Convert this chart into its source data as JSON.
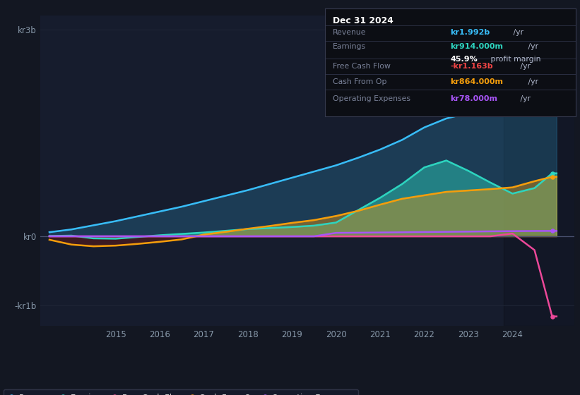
{
  "bg_color": "#131722",
  "panel_bg": "#161c2d",
  "grid_color": "#1e2535",
  "ylim": [
    -1300,
    3200
  ],
  "xlim": [
    2013.3,
    2025.4
  ],
  "xticks": [
    2015,
    2016,
    2017,
    2018,
    2019,
    2020,
    2021,
    2022,
    2023,
    2024
  ],
  "ytick_positions": [
    -1000,
    0,
    3000
  ],
  "ytick_labels": [
    "-kr1b",
    "kr0",
    "kr3b"
  ],
  "years": [
    2013.5,
    2014.0,
    2014.5,
    2015.0,
    2015.5,
    2016.0,
    2016.5,
    2017.0,
    2017.5,
    2018.0,
    2018.5,
    2019.0,
    2019.5,
    2020.0,
    2020.5,
    2021.0,
    2021.5,
    2022.0,
    2022.5,
    2023.0,
    2023.5,
    2024.0,
    2024.5,
    2024.9,
    2025.0
  ],
  "revenue": [
    60,
    100,
    160,
    220,
    290,
    360,
    430,
    510,
    590,
    670,
    760,
    850,
    940,
    1030,
    1140,
    1260,
    1400,
    1580,
    1710,
    1790,
    1840,
    1880,
    1940,
    1992,
    1992
  ],
  "earnings": [
    5,
    10,
    -30,
    -35,
    -10,
    15,
    35,
    55,
    80,
    105,
    120,
    135,
    155,
    200,
    380,
    560,
    760,
    1000,
    1100,
    950,
    780,
    620,
    700,
    914,
    914
  ],
  "free_cash_flow": [
    0,
    0,
    0,
    0,
    0,
    0,
    0,
    0,
    0,
    0,
    0,
    0,
    0,
    0,
    0,
    0,
    0,
    0,
    0,
    0,
    0,
    40,
    -200,
    -1163,
    -1163
  ],
  "cash_from_op": [
    -50,
    -120,
    -145,
    -135,
    -110,
    -80,
    -45,
    25,
    65,
    110,
    150,
    195,
    235,
    295,
    370,
    460,
    545,
    595,
    645,
    665,
    685,
    710,
    800,
    864,
    864
  ],
  "op_expenses": [
    0,
    0,
    0,
    0,
    0,
    0,
    0,
    0,
    0,
    0,
    0,
    0,
    0,
    50,
    52,
    55,
    58,
    62,
    65,
    68,
    72,
    75,
    77,
    78,
    78
  ],
  "revenue_color": "#38bdf8",
  "earnings_color": "#2dd4bf",
  "fcf_color": "#ec4899",
  "cash_op_color": "#f59e0b",
  "op_exp_color": "#a855f7",
  "info_rows": [
    {
      "label": "Revenue",
      "value": "kr1.992b",
      "suffix": " /yr",
      "val_color": "#38bdf8"
    },
    {
      "label": "Earnings",
      "value": "kr914.000m",
      "suffix": " /yr",
      "val_color": "#2dd4bf"
    },
    {
      "label": "",
      "value": "45.9%",
      "suffix": " profit margin",
      "val_color": "#ffffff"
    },
    {
      "label": "Free Cash Flow",
      "value": "-kr1.163b",
      "suffix": " /yr",
      "val_color": "#ef4444"
    },
    {
      "label": "Cash From Op",
      "value": "kr864.000m",
      "suffix": " /yr",
      "val_color": "#f59e0b"
    },
    {
      "label": "Operating Expenses",
      "value": "kr78.000m",
      "suffix": " /yr",
      "val_color": "#a855f7"
    }
  ],
  "legend": [
    {
      "label": "Revenue",
      "color": "#38bdf8"
    },
    {
      "label": "Earnings",
      "color": "#2dd4bf"
    },
    {
      "label": "Free Cash Flow",
      "color": "#ec4899"
    },
    {
      "label": "Cash From Op",
      "color": "#f59e0b"
    },
    {
      "label": "Operating Expenses",
      "color": "#a855f7"
    }
  ]
}
